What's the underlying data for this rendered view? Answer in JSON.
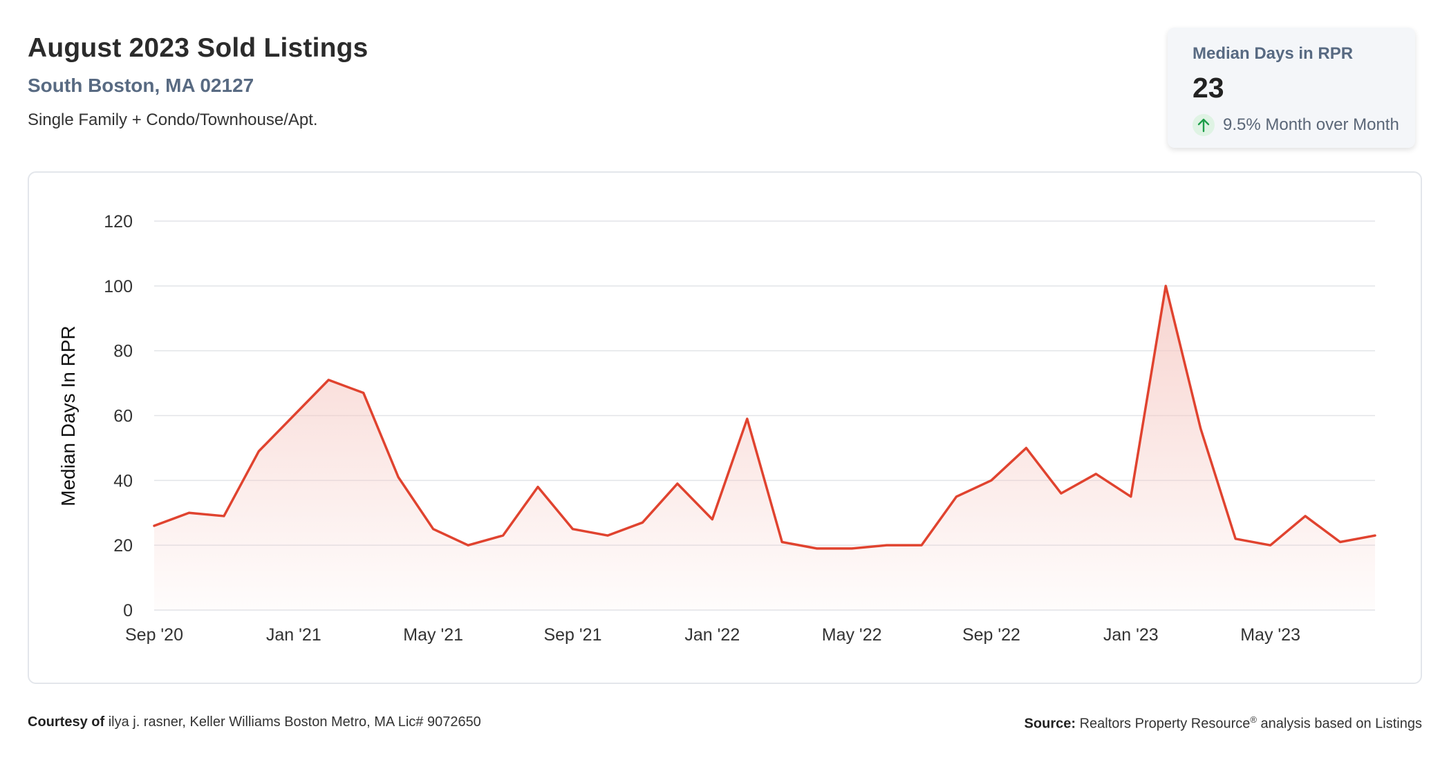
{
  "header": {
    "title": "August 2023 Sold Listings",
    "location": "South Boston, MA 02127",
    "property_types": "Single Family + Condo/Townhouse/Apt."
  },
  "stat_card": {
    "label": "Median Days in RPR",
    "value": "23",
    "change": "9.5% Month over Month",
    "change_direction": "up",
    "change_color": "#1e9e4a"
  },
  "footer": {
    "courtesy_label": "Courtesy of",
    "courtesy_text": "ilya j. rasner, Keller Williams Boston Metro, MA Lic# 9072650",
    "source_label": "Source:",
    "source_text": "Realtors Property Resource",
    "source_mark": "®",
    "source_suffix": " analysis based on Listings"
  },
  "chart_data": {
    "type": "area",
    "title": "",
    "ylabel": "Median Days In RPR",
    "xlabel": "",
    "ylim": [
      0,
      120
    ],
    "yticks": [
      0,
      20,
      40,
      60,
      80,
      100,
      120
    ],
    "grid": true,
    "legend": "none",
    "line_color": "#e0432f",
    "fill_color": "#f5c6c0",
    "x": [
      "Sep '20",
      "Oct '20",
      "Nov '20",
      "Dec '20",
      "Jan '21",
      "Feb '21",
      "Mar '21",
      "Apr '21",
      "May '21",
      "Jun '21",
      "Jul '21",
      "Aug '21",
      "Sep '21",
      "Oct '21",
      "Nov '21",
      "Dec '21",
      "Jan '22",
      "Feb '22",
      "Mar '22",
      "Apr '22",
      "May '22",
      "Jun '22",
      "Jul '22",
      "Aug '22",
      "Sep '22",
      "Oct '22",
      "Nov '22",
      "Dec '22",
      "Jan '23",
      "Feb '23",
      "Mar '23",
      "Apr '23",
      "May '23",
      "Jun '23",
      "Jul '23",
      "Aug '23"
    ],
    "x_tick_labels": [
      "Sep '20",
      "Jan '21",
      "May '21",
      "Sep '21",
      "Jan '22",
      "May '22",
      "Sep '22",
      "Jan '23",
      "May '23"
    ],
    "x_tick_every": 4,
    "series": [
      {
        "values": [
          26,
          30,
          29,
          49,
          60,
          71,
          67,
          41,
          25,
          20,
          23,
          38,
          25,
          23,
          27,
          39,
          28,
          59,
          21,
          19,
          19,
          20,
          20,
          35,
          40,
          50,
          36,
          42,
          35,
          100,
          56,
          22,
          20,
          29,
          21,
          23
        ]
      }
    ]
  }
}
